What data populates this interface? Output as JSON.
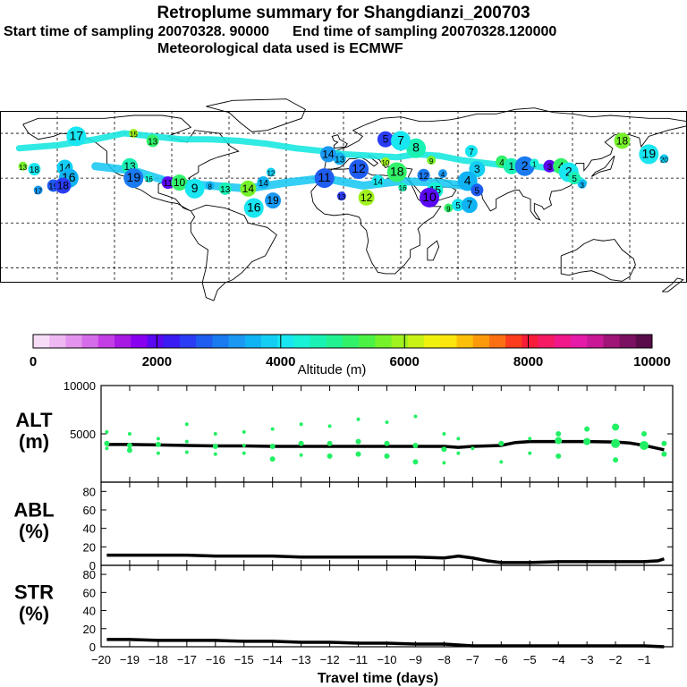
{
  "header": {
    "title": "Retroplume summary for Shangdianzi_200703",
    "start_label": "Start time of sampling 20070328. 90000",
    "end_label": "End time of sampling 20070328.120000",
    "met_label": "Meteorological data used is ECMWF"
  },
  "colorbar": {
    "label": "Altitude (m)",
    "ticks": [
      "0",
      "2000",
      "4000",
      "6000",
      "8000",
      "10000"
    ],
    "tick_values": [
      0,
      2000,
      4000,
      6000,
      8000,
      10000
    ],
    "colors": [
      "#f7dcf7",
      "#eeb8f2",
      "#e394ee",
      "#d56cea",
      "#c43ee6",
      "#a81ae2",
      "#8800f0",
      "#5a08f2",
      "#3a1cf2",
      "#2a3cf4",
      "#1f5cf0",
      "#1a7af0",
      "#1a98f2",
      "#10b4f4",
      "#14cef4",
      "#18e6f0",
      "#18f2d6",
      "#1af2b4",
      "#22f290",
      "#32f26a",
      "#4ef244",
      "#76f22a",
      "#a0f21e",
      "#c8f216",
      "#eef20e",
      "#fae60c",
      "#fcc00a",
      "#fc9a0c",
      "#fc7014",
      "#fc3c1c",
      "#f81c3a",
      "#f41a64",
      "#f0188a",
      "#e61aa8",
      "#c81896",
      "#a01478",
      "#7c1060",
      "#5a0c4a"
    ]
  },
  "map": {
    "name": "world-map"
  },
  "chart_data": [
    {
      "panel": "ALT",
      "type": "line",
      "ylabel": "ALT\n(m)",
      "ylabel_lines": [
        "ALT",
        "(m)"
      ],
      "ylim": [
        0,
        10000
      ],
      "yticks": [
        5000,
        10000
      ],
      "ytick_labels": [
        "5000",
        "10000"
      ],
      "series": [
        {
          "name": "Mean altitude",
          "x": [
            -19.8,
            -19,
            -18,
            -17,
            -16,
            -15,
            -14,
            -13,
            -12,
            -11,
            -10,
            -9,
            -8,
            -7.5,
            -7,
            -6,
            -5.5,
            -5,
            -4,
            -3,
            -2,
            -1.5,
            -1,
            -0.3
          ],
          "values": [
            3900,
            3900,
            3850,
            3800,
            3750,
            3750,
            3700,
            3700,
            3700,
            3700,
            3700,
            3700,
            3700,
            3600,
            3700,
            3800,
            4100,
            4200,
            4200,
            4200,
            4150,
            4050,
            3800,
            3350
          ]
        },
        {
          "name": "Plume points",
          "type": "scatter",
          "x": [
            -19.8,
            -19.8,
            -19.8,
            -19,
            -19,
            -19,
            -18,
            -18,
            -18,
            -17,
            -17,
            -17,
            -16,
            -16,
            -16,
            -15,
            -15,
            -15,
            -14,
            -14,
            -14,
            -13,
            -13,
            -13,
            -12,
            -12,
            -12,
            -11,
            -11,
            -11,
            -10,
            -10,
            -10,
            -9,
            -9,
            -9,
            -8,
            -8,
            -8,
            -7.5,
            -7.5,
            -7,
            -6,
            -6,
            -5,
            -5,
            -4,
            -4,
            -4,
            -3,
            -3,
            -2,
            -2,
            -2,
            -1,
            -1,
            -0.3,
            -0.3
          ],
          "values": [
            5200,
            4000,
            3500,
            5000,
            3800,
            3300,
            4500,
            3900,
            3000,
            6000,
            4200,
            3100,
            5000,
            3700,
            2900,
            5200,
            3800,
            3000,
            5500,
            3700,
            2400,
            6000,
            4000,
            2800,
            5800,
            4000,
            2700,
            6500,
            4200,
            2900,
            6200,
            4000,
            2700,
            6800,
            3800,
            2100,
            5000,
            3400,
            2000,
            4500,
            3000,
            3500,
            4000,
            2100,
            4500,
            3000,
            5000,
            4300,
            2700,
            5500,
            4200,
            5700,
            4000,
            2300,
            5000,
            3800,
            4000,
            2900
          ],
          "sizes": [
            2,
            3,
            2,
            2,
            3,
            3,
            2,
            3,
            2,
            2,
            2,
            2,
            2,
            3,
            2,
            2,
            2,
            2,
            2,
            3,
            3,
            2,
            3,
            2,
            2,
            3,
            3,
            2,
            3,
            3,
            2,
            3,
            3,
            2,
            3,
            3,
            2,
            3,
            2,
            2,
            2,
            2,
            3,
            2,
            2,
            2,
            3,
            4,
            3,
            3,
            4,
            4,
            5,
            3,
            3,
            5,
            3,
            3
          ]
        }
      ]
    },
    {
      "panel": "ABL",
      "type": "line",
      "ylabel_lines": [
        "ABL",
        "(%)"
      ],
      "ylim": [
        0,
        90
      ],
      "yticks": [
        0,
        20,
        40,
        60,
        80
      ],
      "ytick_labels": [
        "0",
        "20",
        "40",
        "60",
        "80"
      ],
      "series": [
        {
          "name": "ABL fraction",
          "x": [
            -19.8,
            -19,
            -18,
            -17,
            -16,
            -15,
            -14,
            -13,
            -12,
            -11,
            -10,
            -9,
            -8,
            -7.5,
            -7,
            -6.5,
            -6,
            -5.5,
            -5,
            -4,
            -3,
            -2,
            -1.5,
            -1,
            -0.5,
            -0.3
          ],
          "values": [
            11,
            11,
            11,
            11,
            10,
            10,
            10,
            9,
            9,
            9,
            9,
            9,
            8,
            10,
            8,
            5,
            3,
            3,
            3,
            4,
            4,
            4,
            4,
            4,
            5,
            7
          ]
        }
      ]
    },
    {
      "panel": "STR",
      "type": "line",
      "ylabel_lines": [
        "STR",
        "(%)"
      ],
      "ylim": [
        0,
        90
      ],
      "yticks": [
        0,
        20,
        40,
        60,
        80
      ],
      "ytick_labels": [
        "0",
        "20",
        "40",
        "60",
        "80"
      ],
      "xlabel": "Travel time (days)",
      "xlim": [
        -20,
        0
      ],
      "xticks": [
        -20,
        -19,
        -18,
        -17,
        -16,
        -15,
        -14,
        -13,
        -12,
        -11,
        -10,
        -9,
        -8,
        -7,
        -6,
        -5,
        -4,
        -3,
        -2,
        -1
      ],
      "xtick_labels": [
        "−20",
        "−19",
        "−18",
        "−17",
        "−16",
        "−15",
        "−14",
        "−13",
        "−12",
        "−11",
        "−10",
        "−9",
        "−8",
        "−7",
        "−6",
        "−5",
        "−4",
        "−3",
        "−2",
        "−1"
      ],
      "series": [
        {
          "name": "Stratosphere fraction",
          "x": [
            -19.8,
            -19,
            -18,
            -17,
            -16,
            -15,
            -14,
            -13,
            -12,
            -11,
            -10,
            -9,
            -8,
            -7.5,
            -7,
            -6,
            -5,
            -4,
            -3,
            -2,
            -1,
            -0.3
          ],
          "values": [
            8,
            8,
            7,
            7,
            7,
            6,
            6,
            5,
            5,
            4,
            4,
            3,
            3,
            2,
            1,
            1,
            1,
            1,
            1,
            1,
            1,
            0
          ]
        }
      ]
    }
  ],
  "plume_labels": [
    {
      "t": "13",
      "lon": -168,
      "lat": 38
    },
    {
      "t": "18",
      "lon": -162,
      "lat": 36
    },
    {
      "t": "14",
      "lon": -146,
      "lat": 37
    },
    {
      "t": "16",
      "lon": -144,
      "lat": 30
    },
    {
      "t": "17",
      "lon": -160,
      "lat": 22
    },
    {
      "t": "19",
      "lon": -152,
      "lat": 25
    },
    {
      "t": "18",
      "lon": -147,
      "lat": 25
    },
    {
      "t": "17",
      "lon": -140,
      "lat": 58
    },
    {
      "t": "15",
      "lon": -110,
      "lat": 60
    },
    {
      "t": "13",
      "lon": -100,
      "lat": 55
    },
    {
      "t": "13",
      "lon": -112,
      "lat": 38
    },
    {
      "t": "19",
      "lon": -110,
      "lat": 30
    },
    {
      "t": "16",
      "lon": -102,
      "lat": 30
    },
    {
      "t": "11",
      "lon": -92,
      "lat": 27
    },
    {
      "t": "10",
      "lon": -86,
      "lat": 27
    },
    {
      "t": "9",
      "lon": -78,
      "lat": 23
    },
    {
      "t": "8",
      "lon": -70,
      "lat": 25
    },
    {
      "t": "13",
      "lon": -62,
      "lat": 23
    },
    {
      "t": "14",
      "lon": -50,
      "lat": 23
    },
    {
      "t": "16",
      "lon": -47,
      "lat": 10
    },
    {
      "t": "12",
      "lon": -38,
      "lat": 34
    },
    {
      "t": "14",
      "lon": -42,
      "lat": 27
    },
    {
      "t": "19",
      "lon": -37,
      "lat": 15
    },
    {
      "t": "11",
      "lon": -10,
      "lat": 30
    },
    {
      "t": "13",
      "lon": -1,
      "lat": 18
    },
    {
      "t": "14",
      "lon": 18,
      "lat": 28
    },
    {
      "t": "12",
      "lon": 12,
      "lat": 17
    },
    {
      "t": "18",
      "lon": 28,
      "lat": 34
    },
    {
      "t": "16",
      "lon": 31,
      "lat": 24
    },
    {
      "t": "12",
      "lon": 42,
      "lat": 32
    },
    {
      "t": "15",
      "lon": 48,
      "lat": 22
    },
    {
      "t": "10",
      "lon": 45,
      "lat": 17
    },
    {
      "t": "9",
      "lon": 55,
      "lat": 10
    },
    {
      "t": "5",
      "lon": 60,
      "lat": 12
    },
    {
      "t": "7",
      "lon": 66,
      "lat": 12
    },
    {
      "t": "8",
      "lon": 38,
      "lat": 50
    },
    {
      "t": "9",
      "lon": 46,
      "lat": 42
    },
    {
      "t": "7",
      "lon": 67,
      "lat": 48
    },
    {
      "t": "3",
      "lon": 70,
      "lat": 36
    },
    {
      "t": "4",
      "lon": 65,
      "lat": 28
    },
    {
      "t": "4",
      "lon": 52,
      "lat": 33
    },
    {
      "t": "5",
      "lon": 70,
      "lat": 22
    },
    {
      "t": "5",
      "lon": 22,
      "lat": 56
    },
    {
      "t": "7",
      "lon": 30,
      "lat": 55
    },
    {
      "t": "10",
      "lon": 22,
      "lat": 41
    },
    {
      "t": "4",
      "lon": 83,
      "lat": 41
    },
    {
      "t": "1",
      "lon": 88,
      "lat": 38
    },
    {
      "t": "2",
      "lon": 95,
      "lat": 38
    },
    {
      "t": "1",
      "lon": 100,
      "lat": 40
    },
    {
      "t": "3",
      "lon": 108,
      "lat": 38
    },
    {
      "t": "4",
      "lon": 114,
      "lat": 38
    },
    {
      "t": "2",
      "lon": 118,
      "lat": 34
    },
    {
      "t": "3",
      "lon": 125,
      "lat": 26
    },
    {
      "t": "5",
      "lon": 121,
      "lat": 30
    },
    {
      "t": "18",
      "lon": 146,
      "lat": 55
    },
    {
      "t": "19",
      "lon": 160,
      "lat": 46
    },
    {
      "t": "20",
      "lon": 168,
      "lat": 43
    },
    {
      "t": "13",
      "lon": -2,
      "lat": 43
    },
    {
      "t": "14",
      "lon": -8,
      "lat": 46
    },
    {
      "t": "12",
      "lon": 8,
      "lat": 36
    }
  ]
}
